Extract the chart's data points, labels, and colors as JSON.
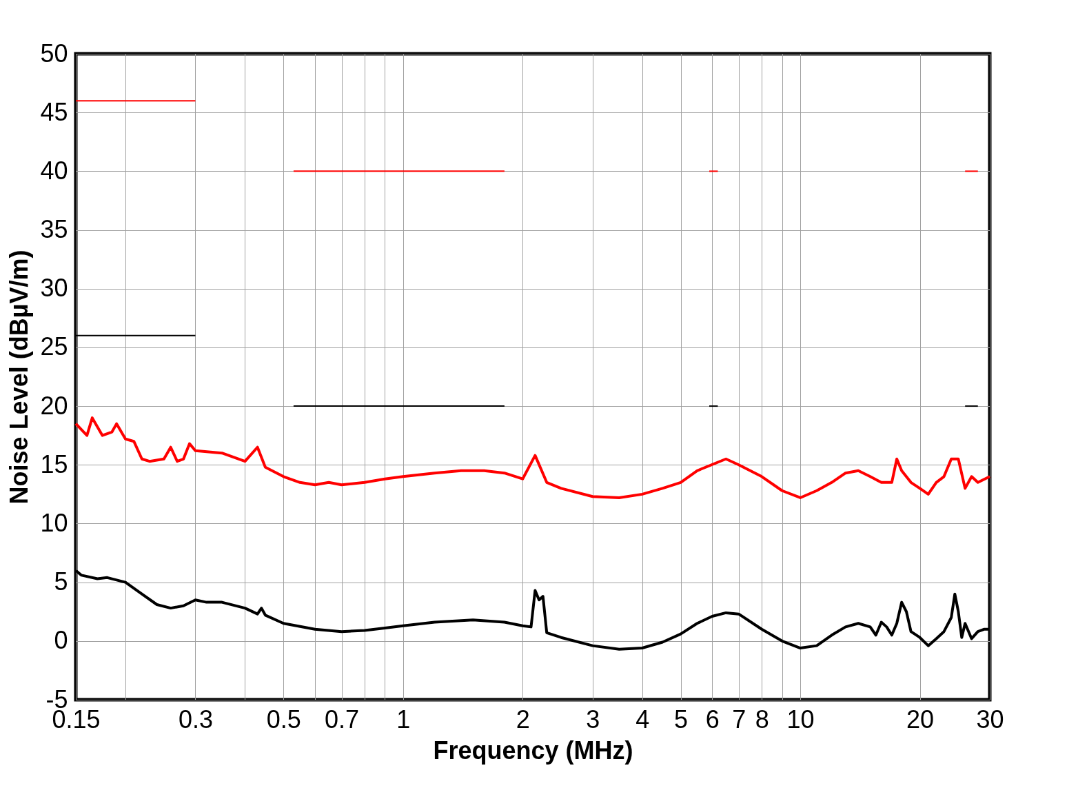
{
  "chart_data": {
    "type": "line",
    "xlabel": "Frequency (MHz)",
    "ylabel": "Noise Level (dBµV/m)",
    "log": "x",
    "grid": true,
    "marker": "none",
    "line_style": "solid",
    "xlim": [
      0.15,
      30
    ],
    "ylim": [
      -5,
      50
    ],
    "xticks": [
      0.15,
      {
        "value": 0.2,
        "label": null
      },
      0.3,
      {
        "value": 0.4,
        "label": null
      },
      0.5,
      {
        "value": 0.6,
        "label": null
      },
      0.7,
      {
        "value": 0.8,
        "label": null
      },
      {
        "value": 0.9,
        "label": null
      },
      1,
      2,
      3,
      4,
      5,
      6,
      7,
      8,
      {
        "value": 9,
        "label": null
      },
      10,
      20,
      30
    ],
    "yticks": [
      -5,
      0,
      5,
      10,
      15,
      20,
      25,
      30,
      35,
      40,
      45,
      50
    ],
    "series": [
      {
        "color": "#ff0000",
        "x": [
          0.15,
          0.3,
          0.4,
          0.53,
          1.8,
          3,
          5.9,
          6.2,
          10,
          26,
          28
        ],
        "values": [
          46,
          46,
          null,
          40,
          40,
          null,
          40,
          40,
          null,
          40,
          40
        ]
      },
      {
        "color": "#000000",
        "x": [
          0.15,
          0.3,
          0.4,
          0.53,
          1.8,
          3,
          5.9,
          6.2,
          10,
          26,
          28
        ],
        "values": [
          26,
          26,
          null,
          20,
          20,
          null,
          20,
          20,
          null,
          20,
          20
        ]
      },
      {
        "color": "#ff0000",
        "x": [
          0.15,
          0.16,
          0.165,
          0.175,
          0.185,
          0.19,
          0.2,
          0.21,
          0.22,
          0.23,
          0.25,
          0.26,
          0.27,
          0.28,
          0.29,
          0.3,
          0.35,
          0.4,
          0.43,
          0.45,
          0.5,
          0.55,
          0.6,
          0.65,
          0.7,
          0.8,
          0.9,
          1,
          1.2,
          1.4,
          1.6,
          1.8,
          2.0,
          2.15,
          2.3,
          2.5,
          3,
          3.5,
          4,
          4.5,
          5,
          5.5,
          6.5,
          7,
          8,
          9,
          10,
          11,
          12,
          13,
          14,
          15,
          16,
          17,
          17.5,
          18,
          19,
          20,
          21,
          22,
          23,
          24,
          25,
          26,
          27,
          28,
          30
        ],
        "values": [
          18.5,
          17.5,
          19,
          17.5,
          17.8,
          18.5,
          17.2,
          17,
          15.5,
          15.3,
          15.5,
          16.5,
          15.3,
          15.5,
          16.8,
          16.2,
          16,
          15.3,
          16.5,
          14.8,
          14,
          13.5,
          13.3,
          13.5,
          13.3,
          13.5,
          13.8,
          14,
          14.3,
          14.5,
          14.5,
          14.3,
          13.8,
          15.8,
          13.5,
          13,
          12.3,
          12.2,
          12.5,
          13,
          13.5,
          14.5,
          15.5,
          15,
          14,
          12.8,
          12.2,
          12.8,
          13.5,
          14.3,
          14.5,
          14,
          13.5,
          13.5,
          15.5,
          14.5,
          13.5,
          13,
          12.5,
          13.5,
          14,
          15.5,
          15.5,
          13,
          14,
          13.5,
          14
        ]
      },
      {
        "color": "#000000",
        "x": [
          0.15,
          0.155,
          0.17,
          0.18,
          0.2,
          0.22,
          0.24,
          0.26,
          0.28,
          0.3,
          0.32,
          0.35,
          0.4,
          0.43,
          0.44,
          0.45,
          0.5,
          0.6,
          0.7,
          0.8,
          0.9,
          1,
          1.2,
          1.5,
          1.8,
          2.0,
          2.1,
          2.15,
          2.2,
          2.25,
          2.3,
          2.5,
          3,
          3.5,
          4,
          4.5,
          5,
          5.5,
          6,
          6.5,
          7,
          8,
          9,
          10,
          11,
          12,
          13,
          14,
          15,
          15.5,
          16,
          16.5,
          17,
          17.5,
          18,
          18.5,
          19,
          20,
          21,
          22,
          23,
          24,
          24.5,
          25,
          25.5,
          26,
          27,
          28,
          29,
          30
        ],
        "values": [
          6,
          5.6,
          5.3,
          5.4,
          5,
          4,
          3.1,
          2.8,
          3,
          3.5,
          3.3,
          3.3,
          2.8,
          2.3,
          2.8,
          2.2,
          1.5,
          1,
          0.8,
          0.9,
          1.1,
          1.3,
          1.6,
          1.8,
          1.6,
          1.3,
          1.2,
          4.3,
          3.5,
          3.8,
          0.7,
          0.3,
          -0.4,
          -0.7,
          -0.6,
          -0.1,
          0.6,
          1.5,
          2.1,
          2.4,
          2.3,
          1,
          0,
          -0.6,
          -0.4,
          0.5,
          1.2,
          1.5,
          1.2,
          0.5,
          1.6,
          1.2,
          0.5,
          1.5,
          3.3,
          2.5,
          0.8,
          0.3,
          -0.4,
          0.2,
          0.8,
          2,
          4,
          2.5,
          0.3,
          1.5,
          0.2,
          0.8,
          1,
          1
        ]
      }
    ]
  }
}
